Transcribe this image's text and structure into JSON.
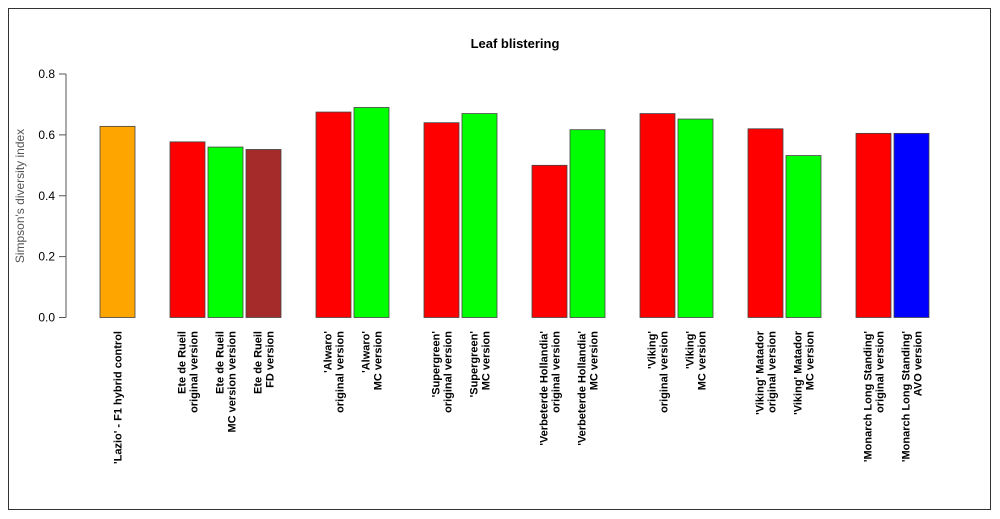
{
  "chart_data": {
    "type": "bar",
    "title": "Leaf blistering",
    "xlabel": "",
    "ylabel": "Simpson's diversity index",
    "ylim": [
      0,
      0.8
    ],
    "yticks": [
      "0.0",
      "0.2",
      "0.4",
      "0.6",
      "0.8"
    ],
    "grid": false,
    "groups": [
      {
        "bars": [
          {
            "label": [
              "'Lazio' - F1 hybrid control"
            ],
            "value": 0.628,
            "color": "#FFA500"
          }
        ]
      },
      {
        "bars": [
          {
            "label": [
              "Ete de Rueil",
              "original version"
            ],
            "value": 0.577,
            "color": "#FF0000"
          },
          {
            "label": [
              "Ete de Rueil",
              "MC version version"
            ],
            "value": 0.56,
            "color": "#00FF00"
          },
          {
            "label": [
              "Ete de Rueil",
              "FD version"
            ],
            "value": 0.552,
            "color": "#A52A2A"
          }
        ]
      },
      {
        "bars": [
          {
            "label": [
              "'Alwaro'",
              "original version"
            ],
            "value": 0.675,
            "color": "#FF0000"
          },
          {
            "label": [
              "'Alwaro'",
              "MC version"
            ],
            "value": 0.69,
            "color": "#00FF00"
          }
        ]
      },
      {
        "bars": [
          {
            "label": [
              "'Supergreen'",
              "original version"
            ],
            "value": 0.64,
            "color": "#FF0000"
          },
          {
            "label": [
              "'Supergreen'",
              "MC version"
            ],
            "value": 0.67,
            "color": "#00FF00"
          }
        ]
      },
      {
        "bars": [
          {
            "label": [
              "'Verbeterde Hollandia'",
              "original version"
            ],
            "value": 0.5,
            "color": "#FF0000"
          },
          {
            "label": [
              "'Verbeterde Hollandia'",
              "MC version"
            ],
            "value": 0.617,
            "color": "#00FF00"
          }
        ]
      },
      {
        "bars": [
          {
            "label": [
              "'Viking'",
              "original version"
            ],
            "value": 0.67,
            "color": "#FF0000"
          },
          {
            "label": [
              "'Viking'",
              "MC version"
            ],
            "value": 0.652,
            "color": "#00FF00"
          }
        ]
      },
      {
        "bars": [
          {
            "label": [
              "'Viking' Matador",
              "original version"
            ],
            "value": 0.62,
            "color": "#FF0000"
          },
          {
            "label": [
              "'Viking' Matador",
              "MC version"
            ],
            "value": 0.532,
            "color": "#00FF00"
          }
        ]
      },
      {
        "bars": [
          {
            "label": [
              "'Monarch Long Standing'",
              "original version"
            ],
            "value": 0.605,
            "color": "#FF0000"
          },
          {
            "label": [
              "'Monarch Long Standing'",
              "AVO version"
            ],
            "value": 0.605,
            "color": "#0000FF"
          }
        ]
      }
    ]
  }
}
